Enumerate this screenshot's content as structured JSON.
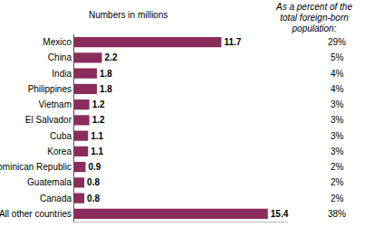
{
  "chart_data": {
    "type": "bar",
    "orientation": "horizontal",
    "xlabel": "Numbers in millions",
    "share_title": "As a percent of the total foreign-born population:",
    "categories": [
      "Mexico",
      "China",
      "India",
      "Philippines",
      "Vietnam",
      "El Salvador",
      "Cuba",
      "Korea",
      "Dominican Republic",
      "Guatemala",
      "Canada",
      "All other countries"
    ],
    "values": [
      11.7,
      2.2,
      1.8,
      1.8,
      1.2,
      1.2,
      1.1,
      1.1,
      0.9,
      0.8,
      0.8,
      15.4
    ],
    "shares": [
      29,
      5,
      4,
      4,
      3,
      3,
      3,
      3,
      2,
      2,
      2,
      38
    ],
    "share_labels": [
      "29%",
      "5%",
      "4%",
      "4%",
      "3%",
      "3%",
      "3%",
      "3%",
      "2%",
      "2%",
      "2%",
      "38%"
    ],
    "color": "#8b2d5c",
    "xlim": [
      0,
      17
    ],
    "data_labels": true,
    "tick_labels": "y",
    "grid": false
  }
}
